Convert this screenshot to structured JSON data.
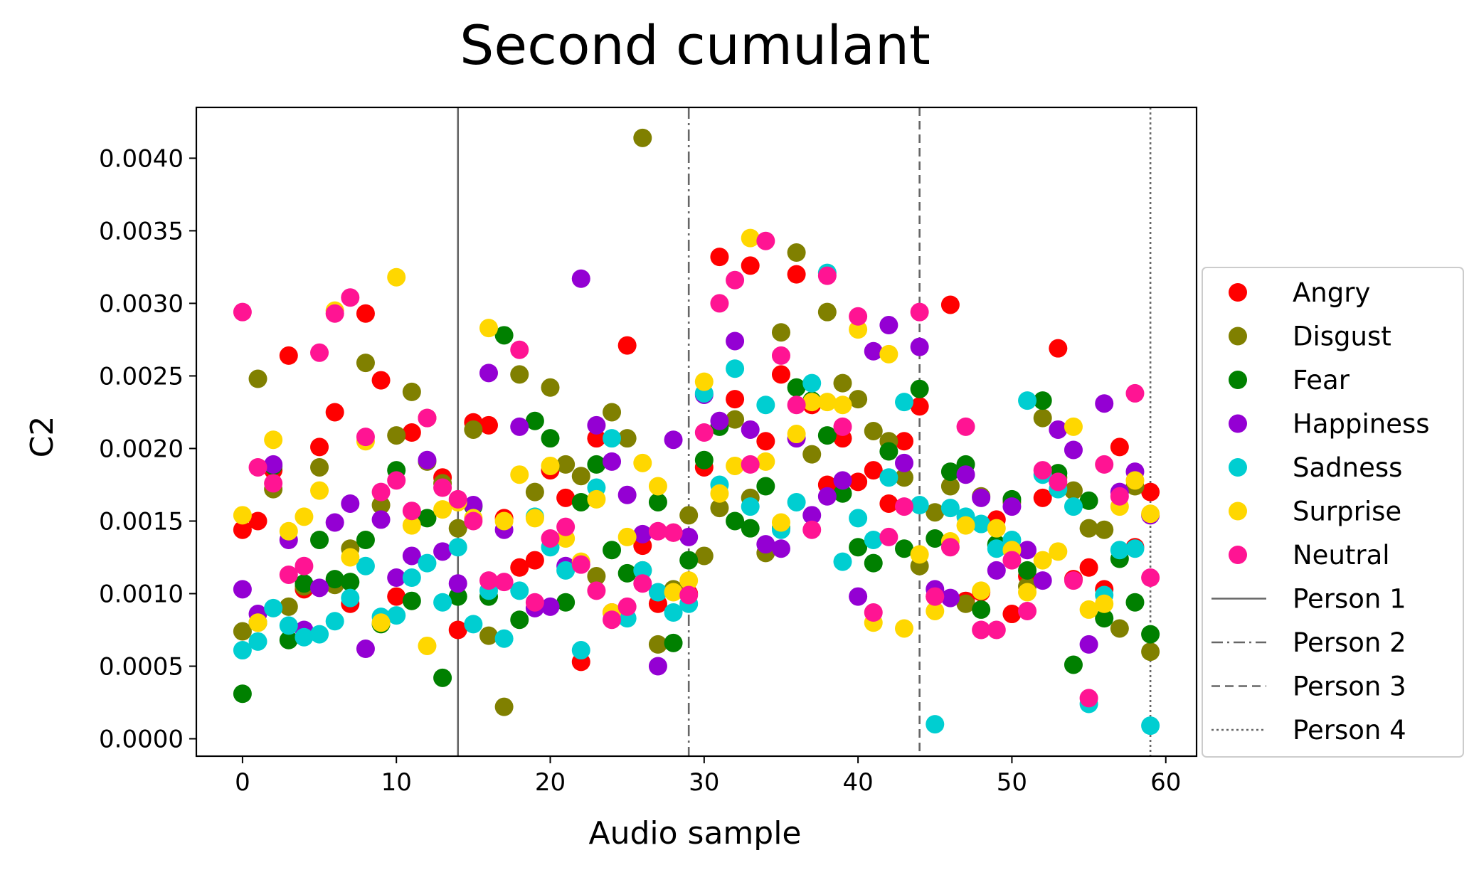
{
  "chart_data": {
    "type": "scatter",
    "title": "Second cumulant",
    "xlabel": "Audio sample",
    "ylabel": "C2",
    "xlim": [
      -3,
      62
    ],
    "ylim": [
      -0.00012,
      0.00435
    ],
    "xticks": [
      0,
      10,
      20,
      30,
      40,
      50,
      60
    ],
    "xtick_labels": [
      "0",
      "10",
      "20",
      "30",
      "40",
      "50",
      "60"
    ],
    "yticks": [
      0,
      0.0005,
      0.001,
      0.0015,
      0.002,
      0.0025,
      0.003,
      0.0035,
      0.004
    ],
    "ytick_labels": [
      "0.0000",
      "0.0005",
      "0.0010",
      "0.0015",
      "0.0020",
      "0.0025",
      "0.0030",
      "0.0035",
      "0.0040"
    ],
    "grid": false,
    "legend_position": "right, outside plot",
    "series": [
      {
        "name": "Angry",
        "color": "#ff0000",
        "x": [
          0,
          1,
          2,
          3,
          4,
          5,
          6,
          7,
          8,
          9,
          10,
          11,
          12,
          13,
          14,
          15,
          16,
          17,
          18,
          19,
          20,
          21,
          22,
          23,
          24,
          25,
          26,
          27,
          28,
          29,
          30,
          31,
          32,
          33,
          34,
          35,
          36,
          37,
          38,
          39,
          40,
          41,
          42,
          43,
          44,
          45,
          46,
          47,
          48,
          49,
          50,
          51,
          52,
          53,
          54,
          55,
          56,
          57,
          58,
          59
        ],
        "y": [
          0.00144,
          0.0015,
          0.00185,
          0.00264,
          0.00103,
          0.00201,
          0.00225,
          0.00093,
          0.00293,
          0.00247,
          0.00098,
          0.00211,
          0.00221,
          0.0018,
          0.00075,
          0.00218,
          0.00216,
          0.00152,
          0.00118,
          0.00123,
          0.00185,
          0.00166,
          0.00053,
          0.00207,
          0.00087,
          0.00271,
          0.00133,
          0.00093,
          0.00142,
          0.001,
          0.00187,
          0.00332,
          0.00234,
          0.00326,
          0.00205,
          0.00251,
          0.0032,
          0.0023,
          0.00175,
          0.00207,
          0.00177,
          0.00185,
          0.00162,
          0.00205,
          0.00229,
          0.00098,
          0.00299,
          0.00095,
          0.00101,
          0.00151,
          0.00086,
          0.00112,
          0.00166,
          0.00269,
          0.0011,
          0.00118,
          0.00103,
          0.00201,
          0.00132,
          0.0017
        ]
      },
      {
        "name": "Disgust",
        "color": "#808000",
        "x": [
          0,
          1,
          2,
          3,
          4,
          5,
          6,
          7,
          8,
          9,
          10,
          11,
          12,
          13,
          14,
          15,
          16,
          17,
          18,
          19,
          20,
          21,
          22,
          23,
          24,
          25,
          26,
          27,
          28,
          29,
          30,
          31,
          32,
          33,
          34,
          35,
          36,
          37,
          38,
          39,
          40,
          41,
          42,
          43,
          44,
          45,
          46,
          47,
          48,
          49,
          50,
          51,
          52,
          53,
          54,
          55,
          56,
          57,
          58,
          59
        ],
        "y": [
          0.00074,
          0.00248,
          0.00172,
          0.00091,
          0.00105,
          0.00187,
          0.00106,
          0.00131,
          0.00259,
          0.00161,
          0.00209,
          0.00239,
          0.00191,
          0.00176,
          0.00145,
          0.00213,
          0.00071,
          0.00022,
          0.00251,
          0.0017,
          0.00242,
          0.00189,
          0.00181,
          0.00112,
          0.00225,
          0.00207,
          0.00414,
          0.00065,
          0.00103,
          0.00154,
          0.00126,
          0.00159,
          0.0022,
          0.00166,
          0.00128,
          0.0028,
          0.00335,
          0.00196,
          0.00294,
          0.00245,
          0.00234,
          0.00212,
          0.00205,
          0.0018,
          0.00119,
          0.00156,
          0.00174,
          0.00093,
          0.00167,
          0.00133,
          0.00163,
          0.00105,
          0.00221,
          0.0018,
          0.00171,
          0.00145,
          0.00144,
          0.00076,
          0.00174,
          0.0006
        ]
      },
      {
        "name": "Fear",
        "color": "#008000",
        "x": [
          0,
          1,
          2,
          3,
          4,
          5,
          6,
          7,
          8,
          9,
          10,
          11,
          12,
          13,
          14,
          15,
          16,
          17,
          18,
          19,
          20,
          21,
          22,
          23,
          24,
          25,
          26,
          27,
          28,
          29,
          30,
          31,
          32,
          33,
          34,
          35,
          36,
          37,
          38,
          39,
          40,
          41,
          42,
          43,
          44,
          45,
          46,
          47,
          48,
          49,
          50,
          51,
          52,
          53,
          54,
          55,
          56,
          57,
          58,
          59
        ],
        "y": [
          0.00031,
          0.0008,
          0.00188,
          0.00068,
          0.00107,
          0.00137,
          0.0011,
          0.00108,
          0.00137,
          0.00079,
          0.00185,
          0.00095,
          0.00152,
          0.00042,
          0.00098,
          0.0016,
          0.00098,
          0.00278,
          0.00082,
          0.00219,
          0.00207,
          0.00094,
          0.00163,
          0.00189,
          0.0013,
          0.00114,
          0.00116,
          0.00163,
          0.00066,
          0.00123,
          0.00192,
          0.00215,
          0.0015,
          0.00145,
          0.00174,
          0.00145,
          0.00242,
          0.00233,
          0.00209,
          0.00169,
          0.00132,
          0.00121,
          0.00198,
          0.00131,
          0.00241,
          0.00138,
          0.00184,
          0.00189,
          0.00089,
          0.00134,
          0.00165,
          0.00116,
          0.00233,
          0.00183,
          0.00051,
          0.00164,
          0.00083,
          0.00124,
          0.00094,
          0.00072
        ]
      },
      {
        "name": "Happiness",
        "color": "#9400d3",
        "x": [
          0,
          1,
          2,
          3,
          4,
          5,
          6,
          7,
          8,
          9,
          10,
          11,
          12,
          13,
          14,
          15,
          16,
          17,
          18,
          19,
          20,
          21,
          22,
          23,
          24,
          25,
          26,
          27,
          28,
          29,
          30,
          31,
          32,
          33,
          34,
          35,
          36,
          37,
          38,
          39,
          40,
          41,
          42,
          43,
          44,
          45,
          46,
          47,
          48,
          49,
          50,
          51,
          52,
          53,
          54,
          55,
          56,
          57,
          58,
          59
        ],
        "y": [
          0.00103,
          0.00086,
          0.00189,
          0.00137,
          0.00075,
          0.00104,
          0.00149,
          0.00162,
          0.00062,
          0.00151,
          0.00111,
          0.00126,
          0.00192,
          0.00129,
          0.00107,
          0.00161,
          0.00252,
          0.00144,
          0.00215,
          0.0009,
          0.00091,
          0.00119,
          0.00317,
          0.00216,
          0.00191,
          0.00168,
          0.00141,
          0.0005,
          0.00206,
          0.00139,
          0.00237,
          0.00219,
          0.00274,
          0.00213,
          0.00134,
          0.00131,
          0.00207,
          0.00154,
          0.00167,
          0.00178,
          0.00098,
          0.00267,
          0.00285,
          0.0019,
          0.0027,
          0.00103,
          0.00097,
          0.00182,
          0.00166,
          0.00116,
          0.0016,
          0.0013,
          0.00109,
          0.00213,
          0.00199,
          0.00065,
          0.00231,
          0.0017,
          0.00184,
          0.00154
        ]
      },
      {
        "name": "Sadness",
        "color": "#00ced1",
        "x": [
          0,
          1,
          2,
          3,
          4,
          5,
          6,
          7,
          8,
          9,
          10,
          11,
          12,
          13,
          14,
          15,
          16,
          17,
          18,
          19,
          20,
          21,
          22,
          23,
          24,
          25,
          26,
          27,
          28,
          29,
          30,
          31,
          32,
          33,
          34,
          35,
          36,
          37,
          38,
          39,
          40,
          41,
          42,
          43,
          44,
          45,
          46,
          47,
          48,
          49,
          50,
          51,
          52,
          53,
          54,
          55,
          56,
          57,
          58,
          59
        ],
        "y": [
          0.00061,
          0.00067,
          0.0009,
          0.00078,
          0.0007,
          0.00072,
          0.00081,
          0.00097,
          0.00119,
          0.00084,
          0.00085,
          0.00111,
          0.00121,
          0.00094,
          0.00132,
          0.00079,
          0.00102,
          0.00069,
          0.00102,
          0.00153,
          0.00132,
          0.00116,
          0.00061,
          0.00173,
          0.00207,
          0.00083,
          0.00116,
          0.00101,
          0.00087,
          0.00093,
          0.00238,
          0.00175,
          0.00255,
          0.0016,
          0.0023,
          0.00144,
          0.00163,
          0.00245,
          0.00321,
          0.00122,
          0.00152,
          0.00137,
          0.0018,
          0.00232,
          0.00161,
          0.0001,
          0.00159,
          0.00153,
          0.00148,
          0.00131,
          0.00137,
          0.00233,
          0.00182,
          0.00172,
          0.0016,
          0.00024,
          0.00099,
          0.0013,
          0.00131,
          9e-05
        ]
      },
      {
        "name": "Surprise",
        "color": "#ffd700",
        "x": [
          0,
          1,
          2,
          3,
          4,
          5,
          6,
          7,
          8,
          9,
          10,
          11,
          12,
          13,
          14,
          15,
          16,
          17,
          18,
          19,
          20,
          21,
          22,
          23,
          24,
          25,
          26,
          27,
          28,
          29,
          30,
          31,
          32,
          33,
          34,
          35,
          36,
          37,
          38,
          39,
          40,
          41,
          42,
          43,
          44,
          45,
          46,
          47,
          48,
          49,
          50,
          51,
          52,
          53,
          54,
          55,
          56,
          57,
          58,
          59
        ],
        "y": [
          0.00154,
          0.0008,
          0.00206,
          0.00143,
          0.00153,
          0.00171,
          0.00295,
          0.00125,
          0.00205,
          0.0008,
          0.00318,
          0.00147,
          0.00064,
          0.00158,
          0.00163,
          0.00152,
          0.00283,
          0.0015,
          0.00182,
          0.00152,
          0.00188,
          0.00138,
          0.00122,
          0.00165,
          0.00087,
          0.00139,
          0.0019,
          0.00174,
          0.00101,
          0.00109,
          0.00246,
          0.00169,
          0.00188,
          0.00345,
          0.00191,
          0.00149,
          0.0021,
          0.00232,
          0.00232,
          0.0023,
          0.00282,
          0.0008,
          0.00265,
          0.00076,
          0.00127,
          0.00088,
          0.00136,
          0.00147,
          0.00102,
          0.00145,
          0.0013,
          0.00101,
          0.00123,
          0.00129,
          0.00215,
          0.00089,
          0.00093,
          0.0016,
          0.00178,
          0.00155
        ]
      },
      {
        "name": "Neutral",
        "color": "#ff1493",
        "x": [
          0,
          1,
          2,
          3,
          4,
          5,
          6,
          7,
          8,
          9,
          10,
          11,
          12,
          13,
          14,
          15,
          16,
          17,
          18,
          19,
          20,
          21,
          22,
          23,
          24,
          25,
          26,
          27,
          28,
          29,
          30,
          31,
          32,
          33,
          34,
          35,
          36,
          37,
          38,
          39,
          40,
          41,
          42,
          43,
          44,
          45,
          46,
          47,
          48,
          49,
          50,
          51,
          52,
          53,
          54,
          55,
          56,
          57,
          58,
          59
        ],
        "y": [
          0.00294,
          0.00187,
          0.00176,
          0.00113,
          0.00119,
          0.00266,
          0.00293,
          0.00304,
          0.00208,
          0.0017,
          0.00178,
          0.00157,
          0.00221,
          0.00173,
          0.00165,
          0.0015,
          0.00109,
          0.00108,
          0.00268,
          0.00094,
          0.00138,
          0.00146,
          0.0012,
          0.00102,
          0.00082,
          0.00091,
          0.00107,
          0.00143,
          0.00142,
          0.00099,
          0.00211,
          0.003,
          0.00316,
          0.00189,
          0.00343,
          0.00264,
          0.0023,
          0.00144,
          0.00319,
          0.00215,
          0.00291,
          0.00087,
          0.00139,
          0.0016,
          0.00294,
          0.00098,
          0.00132,
          0.00215,
          0.00075,
          0.00075,
          0.00123,
          0.00088,
          0.00185,
          0.00177,
          0.00109,
          0.00028,
          0.00189,
          0.00167,
          0.00238,
          0.00111
        ]
      }
    ],
    "vlines": [
      {
        "name": "Person 1",
        "x": 14,
        "style": "solid"
      },
      {
        "name": "Person 2",
        "x": 29,
        "style": "dashdot"
      },
      {
        "name": "Person 3",
        "x": 44,
        "style": "dashed"
      },
      {
        "name": "Person 4",
        "x": 59,
        "style": "dotted"
      }
    ]
  }
}
